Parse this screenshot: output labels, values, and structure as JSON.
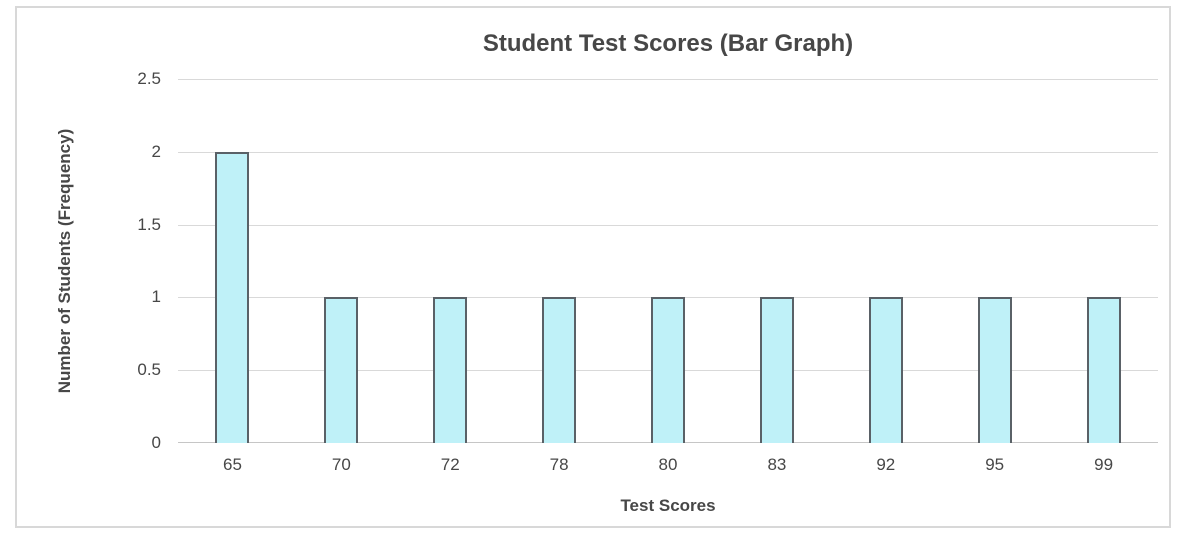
{
  "chart_data": {
    "type": "bar",
    "title": "Student Test Scores (Bar Graph)",
    "xlabel": "Test Scores",
    "ylabel": "Number of Students (Frequency)",
    "categories": [
      "65",
      "70",
      "72",
      "78",
      "80",
      "83",
      "92",
      "95",
      "99"
    ],
    "values": [
      2,
      1,
      1,
      1,
      1,
      1,
      1,
      1,
      1
    ],
    "ylim": [
      0,
      2.5
    ],
    "yticks": [
      "2.5",
      "2",
      "1.5",
      "1",
      "0.5",
      "0"
    ],
    "grid": "horizontal",
    "legend": "none",
    "colors": {
      "bar_fill": "#bff1f8",
      "bar_border": "#5a6167",
      "gridline": "#d9d9d9",
      "axis_line": "#c6c6c6",
      "text": "#474747",
      "frame_border": "#d8d8d8",
      "background": "#ffffff"
    }
  }
}
